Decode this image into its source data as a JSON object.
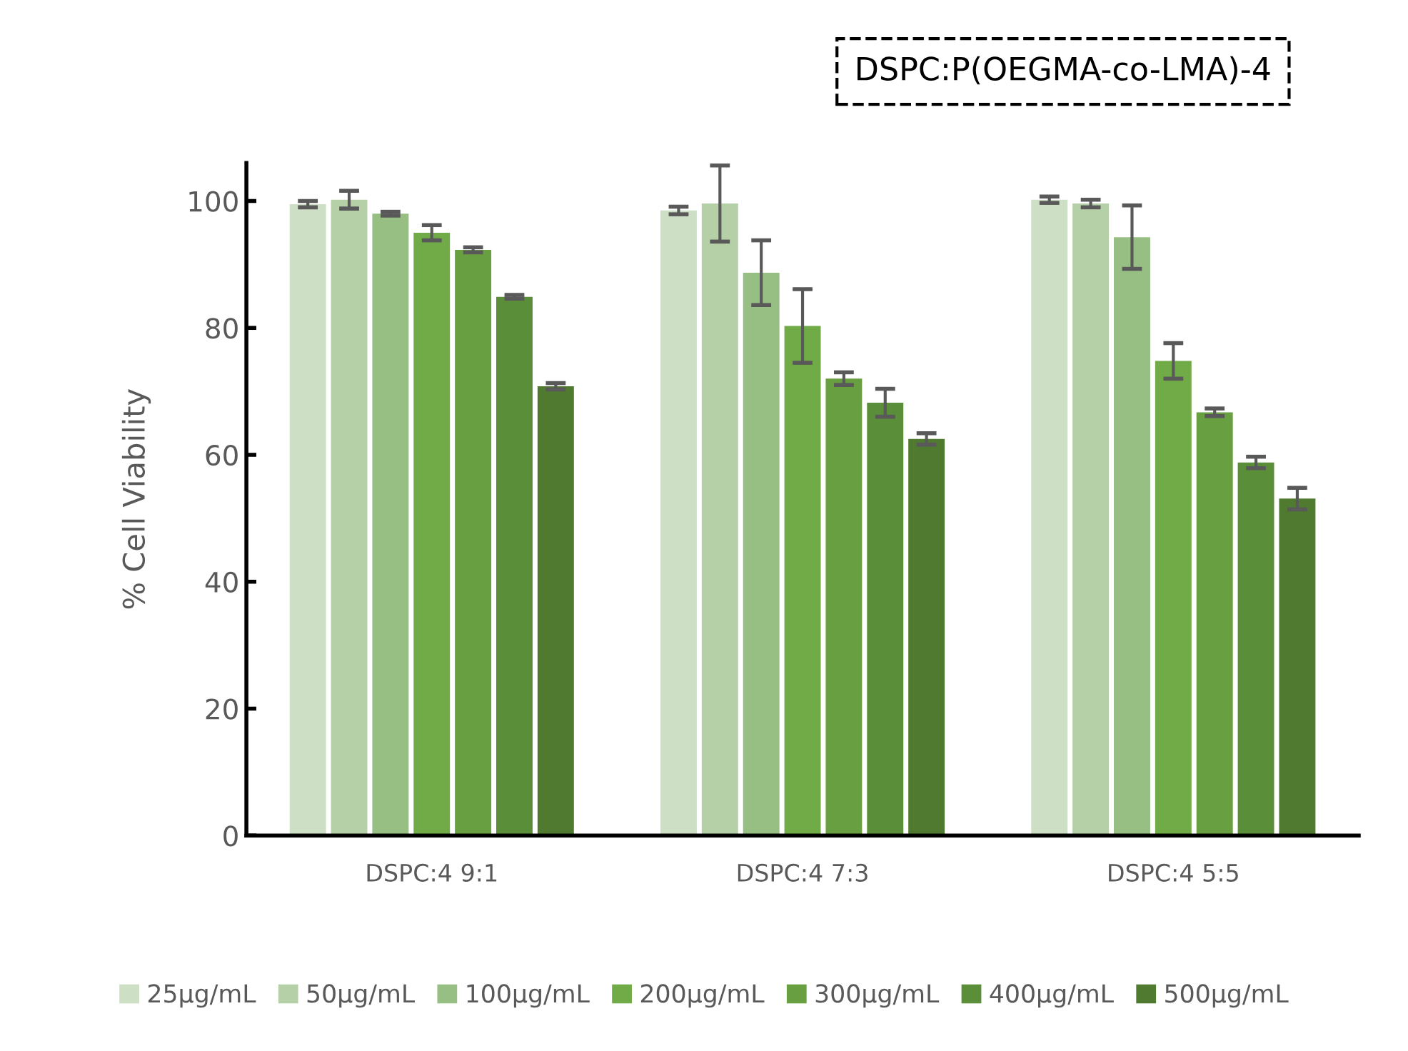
{
  "chart_data": {
    "type": "bar",
    "title": "DSPC:P(OEGMA-co-LMA)-4",
    "ylabel": "% Cell Viability",
    "categories": [
      "DSPC:4 9:1",
      "DSPC:4 7:3",
      "DSPC:4 5:5"
    ],
    "ylim": [
      0,
      106
    ],
    "yticks": [
      0,
      20,
      40,
      60,
      80,
      100
    ],
    "grid": false,
    "legend": "bottom",
    "series": [
      {
        "name": "25µg/mL",
        "color": "#cddfc5",
        "values": [
          99.5,
          98.5,
          100.2
        ],
        "errors": [
          0.5,
          0.6,
          0.5
        ]
      },
      {
        "name": "50µg/mL",
        "color": "#b5cfa6",
        "values": [
          100.2,
          99.6,
          99.6
        ],
        "errors": [
          1.4,
          6,
          0.6
        ]
      },
      {
        "name": "100µg/mL",
        "color": "#98bf83",
        "values": [
          98,
          88.7,
          94.3
        ],
        "errors": [
          0.3,
          5.1,
          5
        ]
      },
      {
        "name": "200µg/mL",
        "color": "#70ab47",
        "values": [
          95,
          80.3,
          74.8
        ],
        "errors": [
          1.2,
          5.8,
          2.8
        ]
      },
      {
        "name": "300µg/mL",
        "color": "#689f40",
        "values": [
          92.3,
          72,
          66.7
        ],
        "errors": [
          0.4,
          1,
          0.6
        ]
      },
      {
        "name": "400µg/mL",
        "color": "#5b8e39",
        "values": [
          84.9,
          68.2,
          58.8
        ],
        "errors": [
          0.3,
          2.2,
          0.9
        ]
      },
      {
        "name": "500µg/mL",
        "color": "#4f7a30",
        "values": [
          70.8,
          62.5,
          53.1
        ],
        "errors": [
          0.5,
          0.9,
          1.7
        ]
      }
    ]
  }
}
